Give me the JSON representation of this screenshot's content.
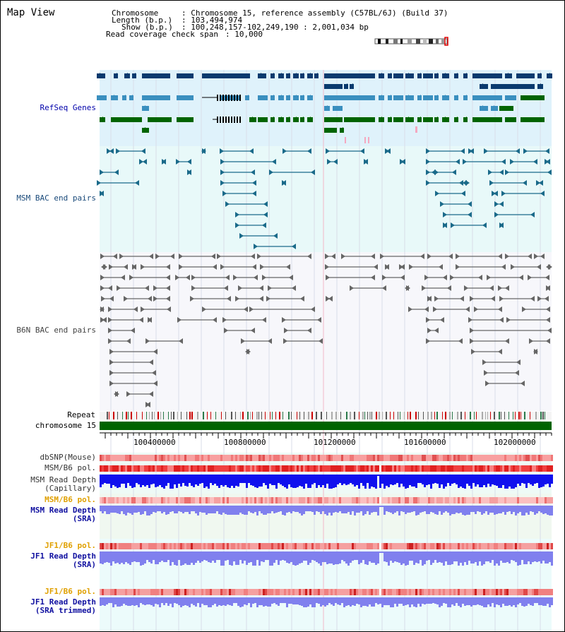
{
  "title": "Map View",
  "header": {
    "chromosome_label": "Chromosome",
    "chromosome_value": ": Chromosome 15, reference assembly (C57BL/6J) (Build 37)",
    "length_label": "Length (b.p.)",
    "length_value": ": 103,494,974",
    "show_label": "Show (b.p.)",
    "show_value": ": 100,248,157-102,249,190 : 2,001,034 bp",
    "coverage_label": "Read coverage check span",
    "coverage_value": ": 10,000"
  },
  "tracks": {
    "refseq": "RefSeq Genes",
    "msm_bac": "MSM BAC end pairs",
    "b6n_bac": "B6N BAC end pairs",
    "repeat": "Repeat",
    "chromosome": "chromosome 15",
    "dbsnp": "dbSNP(Mouse)",
    "msm_b6_pol": "MSM/B6 pol.",
    "msm_depth_cap_1": "MSM Read Depth",
    "msm_depth_cap_2": "(Capillary)",
    "msm_b6_pol2": "MSM/B6 pol.",
    "msm_depth_sra_1": "MSM Read Depth",
    "msm_depth_sra_2": "(SRA)",
    "jf1_b6_pol": "JF1/B6 pol.",
    "jf1_depth_sra_1": "JF1 Read Depth",
    "jf1_depth_sra_2": "(SRA)",
    "jf1_b6_pol2": "JF1/B6 pol.",
    "jf1_depth_trim_1": "JF1 Read Depth",
    "jf1_depth_trim_2": "(SRA trimmed)"
  },
  "axis_ticks": [
    "100400000",
    "100800000",
    "101200000",
    "101600000",
    "102000000"
  ],
  "colors": {
    "refseq_dark": "#0a3a6e",
    "refseq_mid": "#3a8fbf",
    "refseq_green": "#006400",
    "msm_pair": "#1a6a8a",
    "b6n_pair": "#666666",
    "chrom_green": "#006400",
    "depth_blue": "#1010ee",
    "depth_light": "#8080ee"
  }
}
